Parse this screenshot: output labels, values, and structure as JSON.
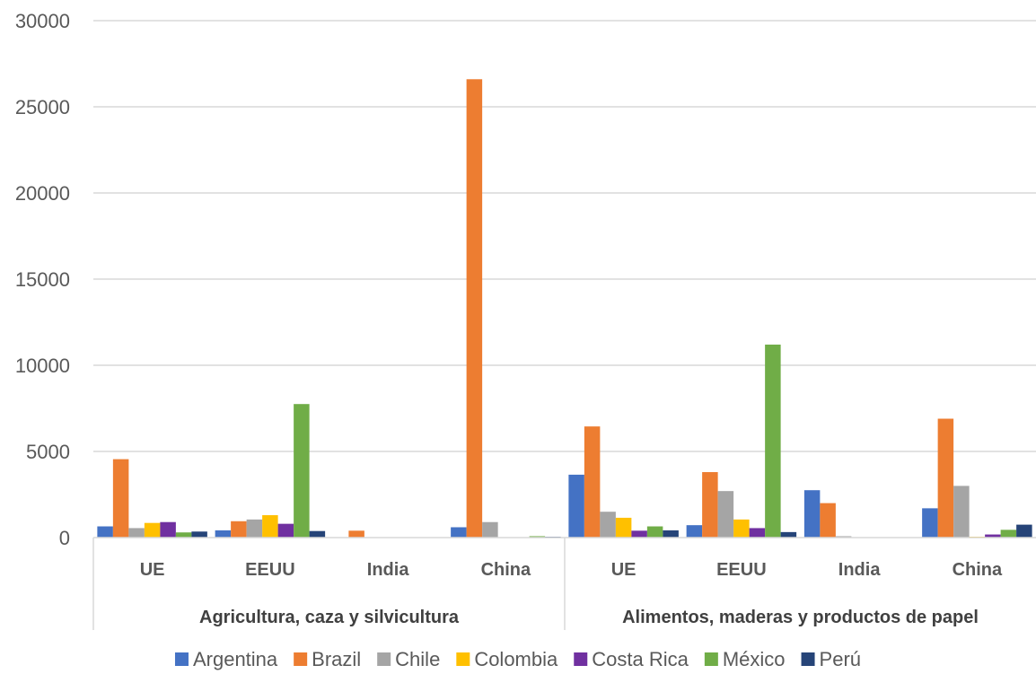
{
  "chart_data": {
    "type": "bar",
    "title": "",
    "xlabel": "",
    "ylabel": "",
    "ylim": [
      0,
      30000
    ],
    "yticks": [
      "0",
      "5000",
      "10000",
      "15000",
      "20000",
      "25000",
      "30000"
    ],
    "grid": true,
    "legend_position": "bottom",
    "groups": [
      "Agricultura, caza y silvicultura",
      "Alimentos, maderas y productos de papel"
    ],
    "categories": [
      "UE",
      "EEUU",
      "India",
      "China",
      "UE",
      "EEUU",
      "India",
      "China"
    ],
    "series": [
      {
        "name": "Argentina",
        "color": "#4472C4",
        "values": [
          650,
          420,
          0,
          600,
          3650,
          720,
          2750,
          1700
        ]
      },
      {
        "name": "Brazil",
        "color": "#ED7D31",
        "values": [
          4550,
          950,
          400,
          26600,
          6450,
          3800,
          2000,
          6900
        ]
      },
      {
        "name": "Chile",
        "color": "#A5A5A5",
        "values": [
          550,
          1050,
          0,
          900,
          1500,
          2700,
          80,
          3000
        ]
      },
      {
        "name": "Colombia",
        "color": "#FFC000",
        "values": [
          850,
          1300,
          0,
          0,
          1150,
          1050,
          0,
          50
        ]
      },
      {
        "name": "Costa Rica",
        "color": "#7030A0",
        "values": [
          900,
          800,
          0,
          0,
          400,
          550,
          0,
          180
        ]
      },
      {
        "name": "México",
        "color": "#70AD47",
        "values": [
          300,
          7750,
          0,
          80,
          650,
          11200,
          0,
          450
        ]
      },
      {
        "name": "Perú",
        "color": "#264478",
        "values": [
          350,
          380,
          0,
          50,
          420,
          320,
          0,
          750
        ]
      }
    ]
  }
}
